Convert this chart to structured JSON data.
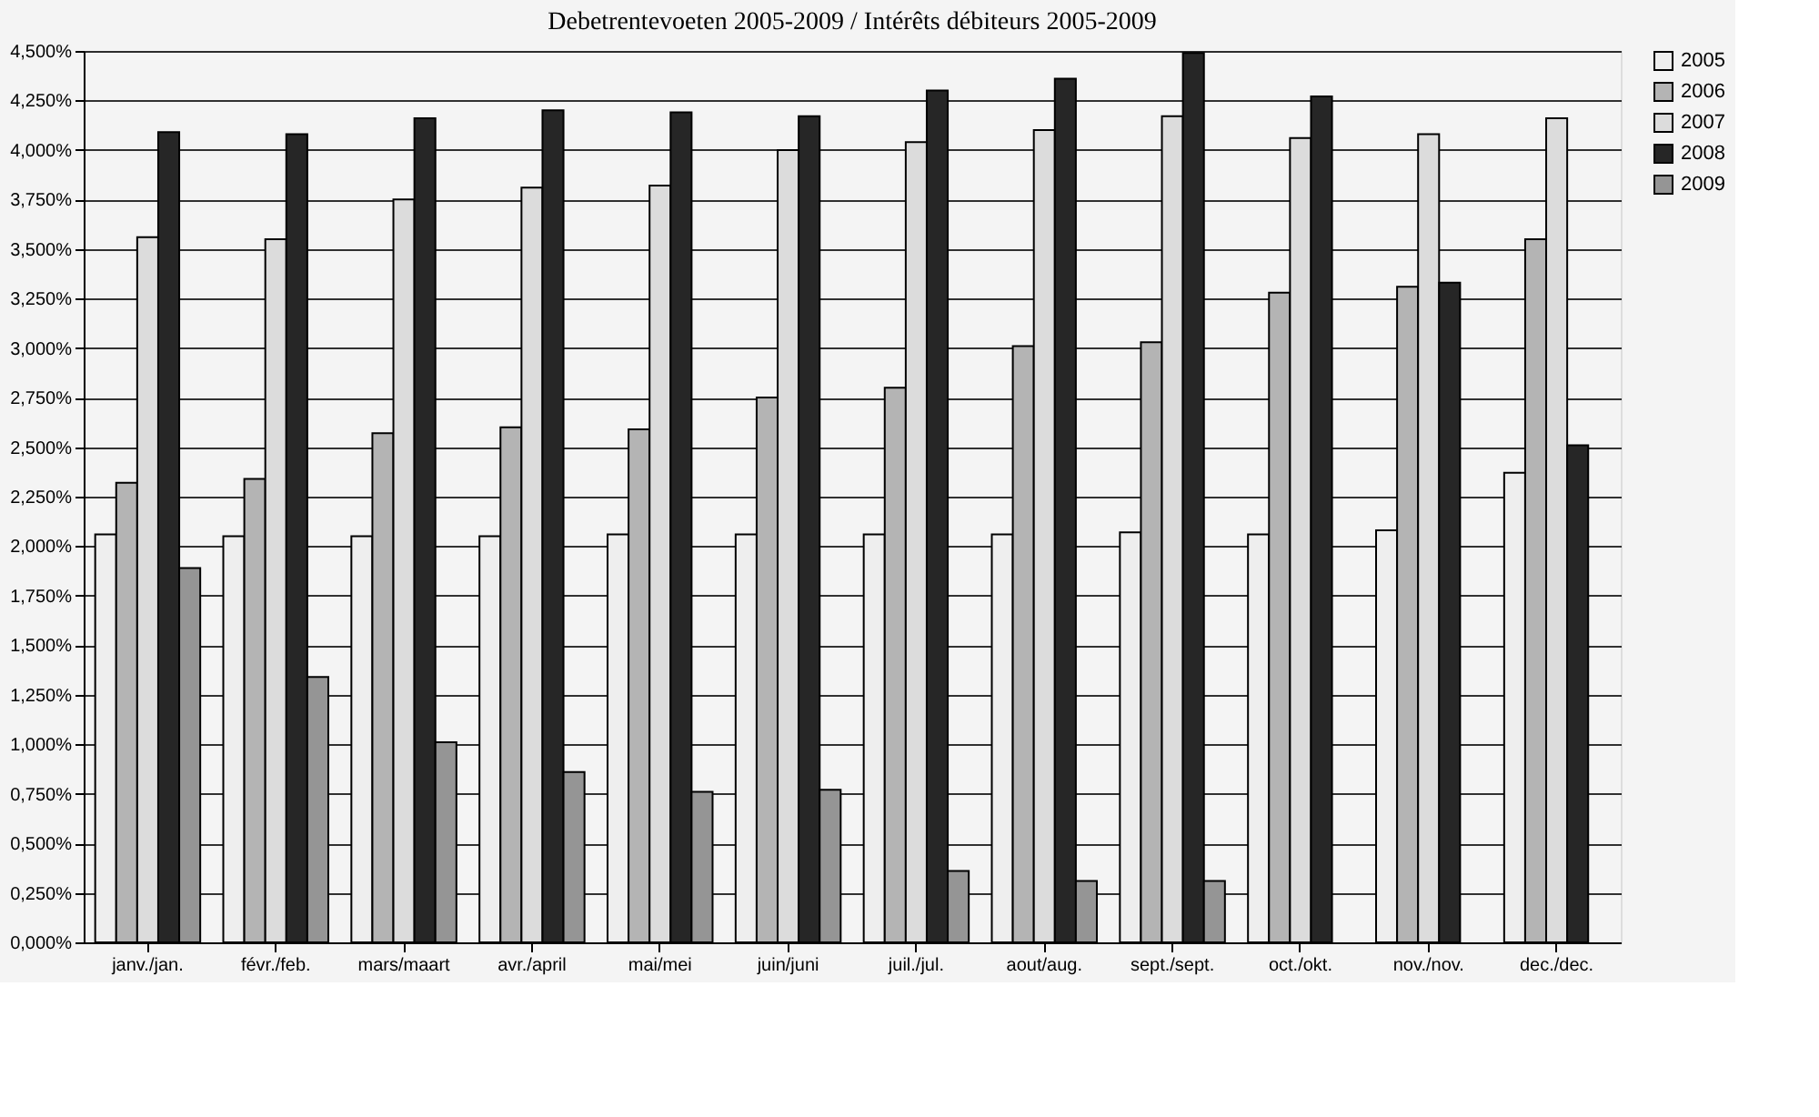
{
  "chart_data": {
    "type": "bar",
    "title": "Debetrentevoeten 2005-2009 / Intérêts débiteurs 2005-2009",
    "categories": [
      "janv./jan.",
      "févr./feb.",
      "mars/maart",
      "avr./april",
      "mai/mei",
      "juin/juni",
      "juil./jul.",
      "aout/aug.",
      "sept./sept.",
      "oct./okt.",
      "nov./nov.",
      "dec./dec."
    ],
    "series": [
      {
        "name": "2005",
        "color": "#eeeeee",
        "values": [
          2.06,
          2.05,
          2.05,
          2.05,
          2.06,
          2.06,
          2.06,
          2.06,
          2.07,
          2.06,
          2.08,
          2.37
        ]
      },
      {
        "name": "2006",
        "color": "#b4b4b4",
        "values": [
          2.32,
          2.34,
          2.57,
          2.6,
          2.59,
          2.75,
          2.8,
          3.01,
          3.03,
          3.28,
          3.31,
          3.55
        ]
      },
      {
        "name": "2007",
        "color": "#dcdcdc",
        "values": [
          3.56,
          3.55,
          3.75,
          3.81,
          3.82,
          4.0,
          4.04,
          4.1,
          4.17,
          4.06,
          4.08,
          4.16
        ]
      },
      {
        "name": "2008",
        "color": "#262626",
        "values": [
          4.09,
          4.08,
          4.16,
          4.2,
          4.19,
          4.17,
          4.3,
          4.36,
          4.49,
          4.27,
          3.33,
          2.51
        ]
      },
      {
        "name": "2009",
        "color": "#959595",
        "values": [
          1.89,
          1.34,
          1.01,
          0.86,
          0.76,
          0.77,
          0.36,
          0.31,
          0.31,
          null,
          null,
          null
        ]
      }
    ],
    "ylim": [
      0,
      4.5
    ],
    "yticks": [
      {
        "value": 0,
        "label": "0,000%"
      },
      {
        "value": 0.25,
        "label": "0,250%"
      },
      {
        "value": 0.5,
        "label": "0,500%"
      },
      {
        "value": 0.75,
        "label": "0,750%"
      },
      {
        "value": 1.0,
        "label": "1,000%"
      },
      {
        "value": 1.25,
        "label": "1,250%"
      },
      {
        "value": 1.5,
        "label": "1,500%"
      },
      {
        "value": 1.75,
        "label": "1,750%"
      },
      {
        "value": 2.0,
        "label": "2,000%"
      },
      {
        "value": 2.25,
        "label": "2,250%"
      },
      {
        "value": 2.5,
        "label": "2,500%"
      },
      {
        "value": 2.75,
        "label": "2,750%"
      },
      {
        "value": 3.0,
        "label": "3,000%"
      },
      {
        "value": 3.25,
        "label": "3,250%"
      },
      {
        "value": 3.5,
        "label": "3,500%"
      },
      {
        "value": 3.75,
        "label": "3,750%"
      },
      {
        "value": 4.0,
        "label": "4,000%"
      },
      {
        "value": 4.25,
        "label": "4,250%"
      },
      {
        "value": 4.5,
        "label": "4,500%"
      }
    ],
    "grid": "y",
    "legend": "right"
  }
}
